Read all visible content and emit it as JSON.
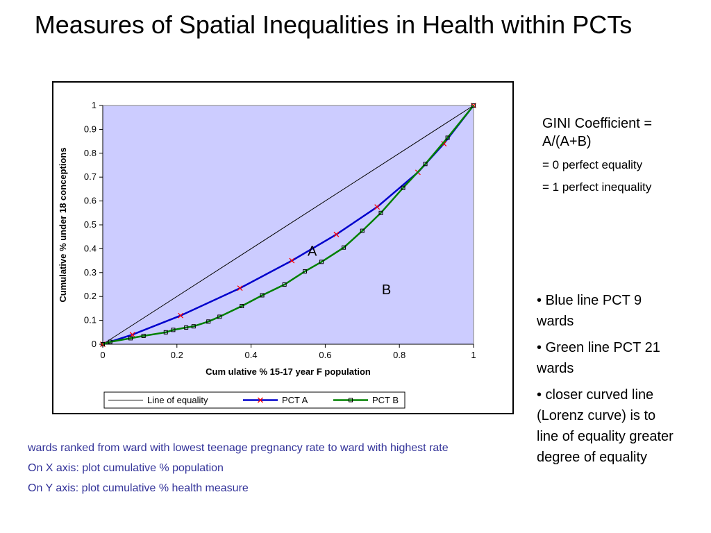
{
  "title": "Measures of Spatial Inequalities in Health within PCTs",
  "side": {
    "gini": "GINI Coefficient = A/(A+B)",
    "items": [
      "= 0 perfect equality",
      "= 1 perfect inequality"
    ]
  },
  "bullets": [
    "• Blue line PCT 9 wards",
    "• Green line PCT 21 wards",
    "• closer curved line (Lorenz curve) is to line of equality greater degree of equality"
  ],
  "notes": [
    "wards ranked from ward with lowest teenage pregnancy rate to ward with highest rate",
    "On X axis: plot cumulative % population",
    "On Y axis: plot cumulative % health measure"
  ],
  "chart_data": {
    "type": "line",
    "xlabel": "Cum ulative % 15-17 year F population",
    "ylabel": "Cumulative % under 18 conceptions",
    "xlim": [
      0,
      1
    ],
    "ylim": [
      0,
      1
    ],
    "x_ticks": [
      "0",
      "0.2",
      "0.4",
      "0.6",
      "0.8",
      "1"
    ],
    "y_ticks": [
      "0",
      "0.1",
      "0.2",
      "0.3",
      "0.4",
      "0.5",
      "0.6",
      "0.7",
      "0.8",
      "0.9",
      "1"
    ],
    "grid": false,
    "plot_background": "#ccccff",
    "legend_position": "bottom",
    "annotations": [
      {
        "text": "A",
        "x": 0.565,
        "y": 0.37
      },
      {
        "text": "B",
        "x": 0.765,
        "y": 0.21
      }
    ],
    "series": [
      {
        "name": "Line of equality",
        "color": "#000000",
        "marker": "none",
        "x": [
          0,
          1
        ],
        "y": [
          0,
          1
        ]
      },
      {
        "name": "PCT A",
        "color": "#0000cc",
        "marker": "x",
        "marker_color": "#ff0000",
        "x": [
          0,
          0.08,
          0.21,
          0.37,
          0.51,
          0.63,
          0.74,
          0.85,
          0.92,
          1.0
        ],
        "y": [
          0,
          0.04,
          0.12,
          0.235,
          0.35,
          0.46,
          0.575,
          0.72,
          0.84,
          1.0
        ]
      },
      {
        "name": "PCT B",
        "color": "#008000",
        "marker": "square",
        "marker_color": "#000000",
        "x": [
          0,
          0.02,
          0.075,
          0.11,
          0.17,
          0.19,
          0.225,
          0.245,
          0.285,
          0.315,
          0.375,
          0.43,
          0.49,
          0.545,
          0.59,
          0.65,
          0.7,
          0.75,
          0.81,
          0.87,
          0.93,
          1.0
        ],
        "y": [
          0,
          0.01,
          0.025,
          0.035,
          0.05,
          0.06,
          0.07,
          0.075,
          0.095,
          0.115,
          0.16,
          0.205,
          0.25,
          0.305,
          0.345,
          0.405,
          0.475,
          0.55,
          0.655,
          0.755,
          0.865,
          1.0
        ]
      }
    ]
  }
}
